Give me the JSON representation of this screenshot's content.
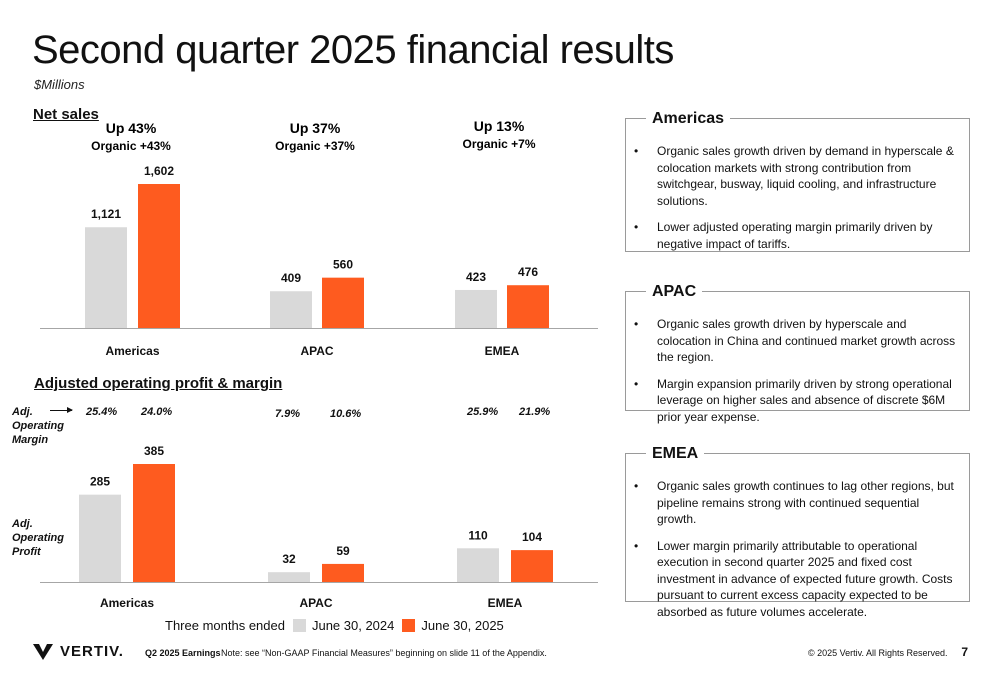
{
  "title": "Second quarter 2025 financial results",
  "subtitle": "$Millions",
  "net_sales_title": "Net sales",
  "op_profit_title": "Adjusted operating profit & margin",
  "growth": [
    {
      "up": "Up 43%",
      "organic": "Organic +43%"
    },
    {
      "up": "Up 37%",
      "organic": "Organic +37%"
    },
    {
      "up": "Up 13%",
      "organic": "Organic +7%"
    }
  ],
  "margin_label": "Adj.\nOperating\nMargin",
  "profit_label": "Adj.\nOperating\nProfit",
  "margins": [
    {
      "y2024": "25.4%",
      "y2025": "24.0%"
    },
    {
      "y2024": "7.9%",
      "y2025": "10.6%"
    },
    {
      "y2024": "25.9%",
      "y2025": "21.9%"
    }
  ],
  "chart_data": [
    {
      "type": "bar",
      "categories": [
        "Americas",
        "APAC",
        "EMEA"
      ],
      "series": [
        {
          "name": "June 30, 2024",
          "values": [
            1121,
            409,
            423
          ],
          "labels": [
            "1,121",
            "409",
            "423"
          ]
        },
        {
          "name": "June 30, 2025",
          "values": [
            1602,
            560,
            476
          ],
          "labels": [
            "1,602",
            "560",
            "476"
          ]
        }
      ]
    },
    {
      "type": "bar",
      "categories": [
        "Americas",
        "APAC",
        "EMEA"
      ],
      "series": [
        {
          "name": "June 30, 2024",
          "values": [
            285,
            32,
            110
          ],
          "labels": [
            "285",
            "32",
            "110"
          ]
        },
        {
          "name": "June 30, 2025",
          "values": [
            385,
            59,
            104
          ],
          "labels": [
            "385",
            "59",
            "104"
          ]
        }
      ]
    }
  ],
  "legend": {
    "title": "Three months ended",
    "s1": "June 30, 2024",
    "s2": "June 30, 2025"
  },
  "colors": {
    "y2024": "#d9d9d9",
    "y2025": "#fe5b1f",
    "axis": "#a6a6a6"
  },
  "panels": [
    {
      "title": "Americas",
      "bullets": [
        "Organic sales growth driven by demand in hyperscale & colocation markets with strong contribution from switchgear, busway, liquid cooling, and infrastructure solutions.",
        "Lower adjusted operating margin primarily driven by negative impact of tariffs."
      ]
    },
    {
      "title": "APAC",
      "bullets": [
        "Organic sales growth driven by hyperscale and colocation in China and continued market growth across the region.",
        "Margin expansion primarily driven by strong operational leverage on higher sales and absence of discrete $6M prior year expense."
      ]
    },
    {
      "title": "EMEA",
      "bullets": [
        "Organic sales growth continues to lag other regions, but pipeline remains strong with continued sequential growth.",
        "Lower margin primarily attributable to operational execution in second quarter 2025 and fixed cost investment in advance of expected future growth. Costs pursuant to current excess capacity expected to be absorbed as future volumes accelerate."
      ]
    }
  ],
  "footer": {
    "logo_text": "VERTIV.",
    "earnings": "Q2 2025 Earnings",
    "note": "Note: see “Non-GAAP Financial Measures” beginning on slide 11 of the Appendix.",
    "copyright": "© 2025 Vertiv. All Rights Reserved.",
    "page": "7"
  }
}
